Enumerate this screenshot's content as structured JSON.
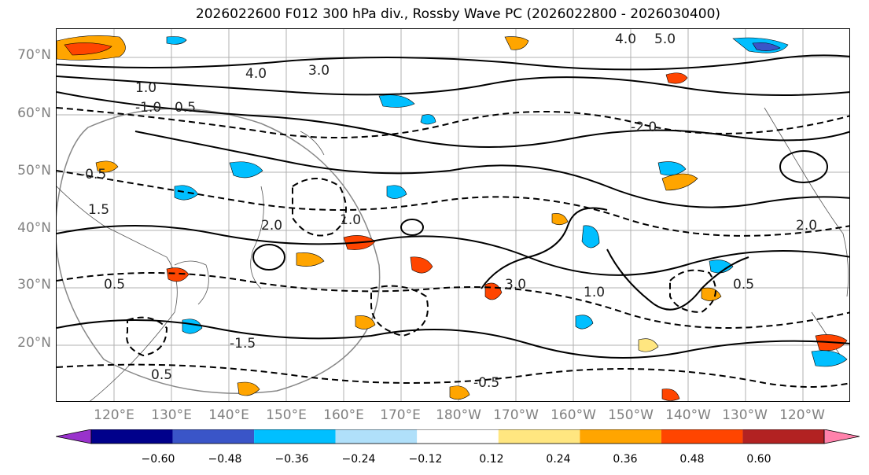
{
  "title": "2026022600 F012 300 hPa div., Rossby Wave PC (2026022800 - 2026030400)",
  "lat_labels": [
    "70°N",
    "60°N",
    "50°N",
    "40°N",
    "30°N",
    "20°N"
  ],
  "lon_labels": [
    "120°E",
    "130°E",
    "140°E",
    "150°E",
    "160°E",
    "170°E",
    "180°W",
    "170°W",
    "160°W",
    "150°W",
    "140°W",
    "130°W",
    "120°W"
  ],
  "contour_labels": [
    "4.0",
    "5.0",
    "3.0",
    "4.0",
    "1.0",
    "0.5",
    "-2.0",
    "-1.0",
    "-0.5",
    "1.5",
    "2.0",
    "1.0",
    "0.5",
    "-0.5",
    "3.0",
    "1.0",
    "0.5",
    "2.0",
    "-1.5",
    "0.5"
  ],
  "colorbar": {
    "colors": [
      "#9932cc",
      "#00008b",
      "#3a55c8",
      "#00bfff",
      "#b0e0fa",
      "#ffffff",
      "#ffe680",
      "#ffa500",
      "#ff4500",
      "#b22222",
      "#ff82ab"
    ],
    "ticks": [
      "−0.60",
      "−0.48",
      "−0.36",
      "−0.24",
      "−0.12",
      "0.12",
      "0.24",
      "0.36",
      "0.48",
      "0.60"
    ]
  }
}
